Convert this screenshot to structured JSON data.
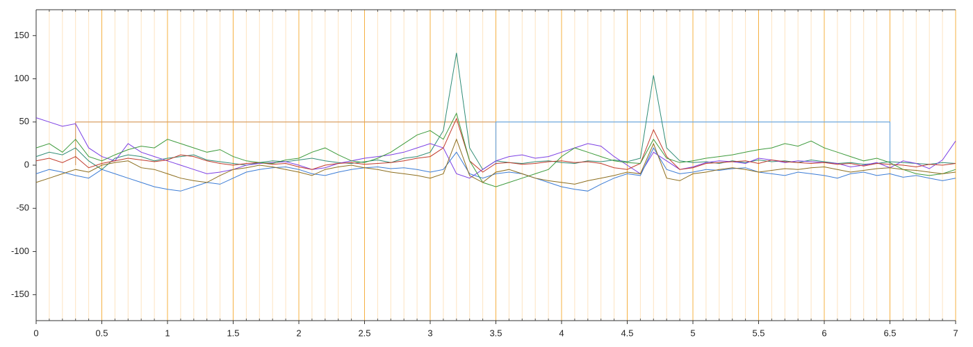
{
  "chart_data": {
    "type": "line",
    "x": [
      0,
      0.1,
      0.2,
      0.3,
      0.4,
      0.5,
      0.6,
      0.7,
      0.8,
      0.9,
      1,
      1.1,
      1.2,
      1.3,
      1.4,
      1.5,
      1.6,
      1.7,
      1.8,
      1.9,
      2,
      2.1,
      2.2,
      2.3,
      2.4,
      2.5,
      2.6,
      2.7,
      2.8,
      2.9,
      3,
      3.1,
      3.2,
      3.3,
      3.4,
      3.5,
      3.6,
      3.7,
      3.8,
      3.9,
      4,
      4.1,
      4.2,
      4.3,
      4.4,
      4.5,
      4.6,
      4.7,
      4.8,
      4.9,
      5,
      5.1,
      5.2,
      5.3,
      5.4,
      5.5,
      5.6,
      5.7,
      5.8,
      5.9,
      6,
      6.1,
      6.2,
      6.3,
      6.4,
      6.5,
      6.6,
      6.7,
      6.8,
      6.9,
      7
    ],
    "series": [
      {
        "color": "#2e8b74",
        "values": [
          10,
          15,
          12,
          20,
          5,
          -5,
          8,
          12,
          10,
          5,
          8,
          10,
          12,
          6,
          4,
          2,
          0,
          3,
          5,
          4,
          6,
          8,
          5,
          3,
          2,
          4,
          6,
          3,
          8,
          10,
          15,
          40,
          130,
          20,
          -5,
          5,
          3,
          2,
          4,
          5,
          3,
          2,
          5,
          4,
          6,
          4,
          8,
          104,
          20,
          5,
          3,
          4,
          2,
          5,
          3,
          6,
          4,
          5,
          3,
          6,
          4,
          2,
          3,
          1,
          2,
          4,
          3,
          2,
          1,
          3,
          2
        ]
      },
      {
        "color": "#7b3fe4",
        "values": [
          55,
          50,
          45,
          48,
          20,
          10,
          5,
          25,
          15,
          10,
          5,
          0,
          -5,
          -10,
          -8,
          -5,
          0,
          2,
          3,
          4,
          0,
          -5,
          -3,
          2,
          5,
          8,
          10,
          12,
          15,
          20,
          25,
          20,
          -10,
          -15,
          -5,
          5,
          10,
          12,
          8,
          10,
          15,
          20,
          25,
          22,
          10,
          0,
          -10,
          15,
          5,
          -5,
          -2,
          3,
          5,
          4,
          2,
          8,
          6,
          3,
          5,
          4,
          3,
          2,
          -2,
          0,
          3,
          -3,
          5,
          2,
          -4,
          6,
          28
        ]
      },
      {
        "color": "#c0392b",
        "values": [
          5,
          8,
          3,
          10,
          -3,
          2,
          5,
          8,
          6,
          4,
          6,
          12,
          10,
          5,
          2,
          0,
          2,
          3,
          1,
          2,
          -2,
          -5,
          0,
          2,
          3,
          1,
          2,
          3,
          5,
          8,
          10,
          20,
          54,
          5,
          -8,
          2,
          3,
          1,
          2,
          4,
          5,
          3,
          4,
          2,
          -3,
          -5,
          2,
          41,
          10,
          -5,
          -3,
          2,
          3,
          4,
          5,
          2,
          6,
          4,
          3,
          2,
          3,
          1,
          2,
          -1,
          2,
          1,
          0,
          -2,
          1,
          0,
          2
        ]
      },
      {
        "color": "#3a7bd5",
        "values": [
          -10,
          -5,
          -8,
          -12,
          -15,
          -5,
          -10,
          -15,
          -20,
          -25,
          -28,
          -30,
          -25,
          -20,
          -22,
          -15,
          -8,
          -5,
          -3,
          -2,
          -5,
          -10,
          -12,
          -8,
          -5,
          -3,
          -2,
          -4,
          -3,
          -5,
          -8,
          -5,
          15,
          -10,
          -15,
          -10,
          -8,
          -10,
          -15,
          -20,
          -25,
          -28,
          -30,
          -22,
          -15,
          -10,
          -12,
          20,
          -5,
          -10,
          -8,
          -5,
          -6,
          -4,
          -3,
          -8,
          -10,
          -12,
          -8,
          -10,
          -12,
          -15,
          -10,
          -8,
          -12,
          -10,
          -14,
          -12,
          -15,
          -18,
          -15
        ]
      },
      {
        "color": "#3c9a3c",
        "values": [
          20,
          25,
          15,
          30,
          10,
          5,
          12,
          18,
          22,
          20,
          30,
          25,
          20,
          15,
          18,
          10,
          5,
          3,
          2,
          6,
          8,
          15,
          20,
          12,
          5,
          3,
          8,
          15,
          25,
          35,
          40,
          30,
          60,
          5,
          -20,
          -25,
          -20,
          -15,
          -10,
          -5,
          10,
          20,
          15,
          10,
          5,
          3,
          2,
          30,
          8,
          3,
          5,
          8,
          10,
          12,
          15,
          18,
          20,
          25,
          22,
          28,
          20,
          15,
          10,
          5,
          8,
          3,
          -5,
          -10,
          -12,
          -10,
          -5
        ]
      },
      {
        "color": "#8b6d1e",
        "values": [
          -20,
          -15,
          -10,
          -5,
          -8,
          0,
          3,
          5,
          -3,
          -5,
          -10,
          -15,
          -18,
          -20,
          -12,
          -5,
          -3,
          0,
          -2,
          -5,
          -8,
          -12,
          -5,
          -2,
          0,
          -3,
          -5,
          -8,
          -10,
          -12,
          -15,
          -10,
          30,
          -12,
          -20,
          -8,
          -5,
          -10,
          -15,
          -18,
          -20,
          -22,
          -18,
          -15,
          -12,
          -8,
          -10,
          25,
          -15,
          -18,
          -10,
          -8,
          -5,
          -3,
          -5,
          -8,
          -6,
          -4,
          -5,
          -3,
          -2,
          -5,
          -8,
          -6,
          -4,
          -3,
          -5,
          -6,
          -8,
          -10,
          -8
        ]
      }
    ],
    "events": [
      {
        "start": 0.3,
        "end": 3.5,
        "value": 50,
        "color": "#d9a066"
      },
      {
        "start": 3.5,
        "end": 6.5,
        "value": 50,
        "color": "#6fa8dc"
      }
    ],
    "xlim": [
      0,
      7
    ],
    "xticks": [
      0,
      0.5,
      1,
      1.5,
      2,
      2.5,
      3,
      3.5,
      4,
      4.5,
      5,
      5.5,
      6,
      6.5,
      7
    ],
    "xminorticks": [
      0.1,
      0.2,
      0.3,
      0.4,
      0.6,
      0.7,
      0.8,
      0.9,
      1.1,
      1.2,
      1.3,
      1.4,
      1.6,
      1.7,
      1.8,
      1.9,
      2.1,
      2.2,
      2.3,
      2.4,
      2.6,
      2.7,
      2.8,
      2.9,
      3.1,
      3.2,
      3.3,
      3.4,
      3.6,
      3.7,
      3.8,
      3.9,
      4.1,
      4.2,
      4.3,
      4.4,
      4.6,
      4.7,
      4.8,
      4.9,
      5.1,
      5.2,
      5.3,
      5.4,
      5.6,
      5.7,
      5.8,
      5.9,
      6.1,
      6.2,
      6.3,
      6.4,
      6.6,
      6.7,
      6.8,
      6.9
    ],
    "ylim": [
      -180,
      180
    ],
    "yticks": [
      -150,
      -100,
      -50,
      0,
      50,
      100,
      150
    ],
    "grid": true,
    "grid_color": "#f5b041",
    "minor_grid_color": "#fde3c0"
  }
}
